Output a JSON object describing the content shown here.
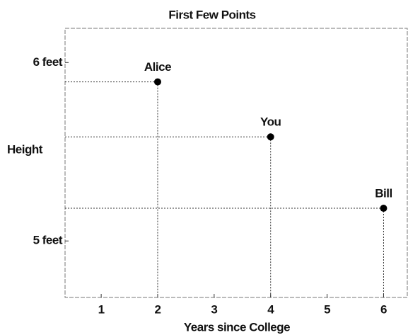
{
  "chart_data": {
    "type": "scatter",
    "title": "First Few Points",
    "xlabel": "Years since College",
    "ylabel": "Height",
    "x": [
      2,
      4,
      6
    ],
    "values": [
      70.7,
      67,
      62.2
    ],
    "labels": [
      "Alice",
      "You",
      "Bill"
    ],
    "color": "#000000",
    "xlim": [
      0.36,
      6.42
    ],
    "xticks": [
      1,
      2,
      3,
      4,
      5,
      6
    ],
    "ylim": [
      56.2,
      74.3
    ],
    "yticks": [
      {
        "value": 60,
        "label": "5 feet"
      },
      {
        "value": 72,
        "label": "6 feet"
      }
    ],
    "guide_lines": true
  }
}
